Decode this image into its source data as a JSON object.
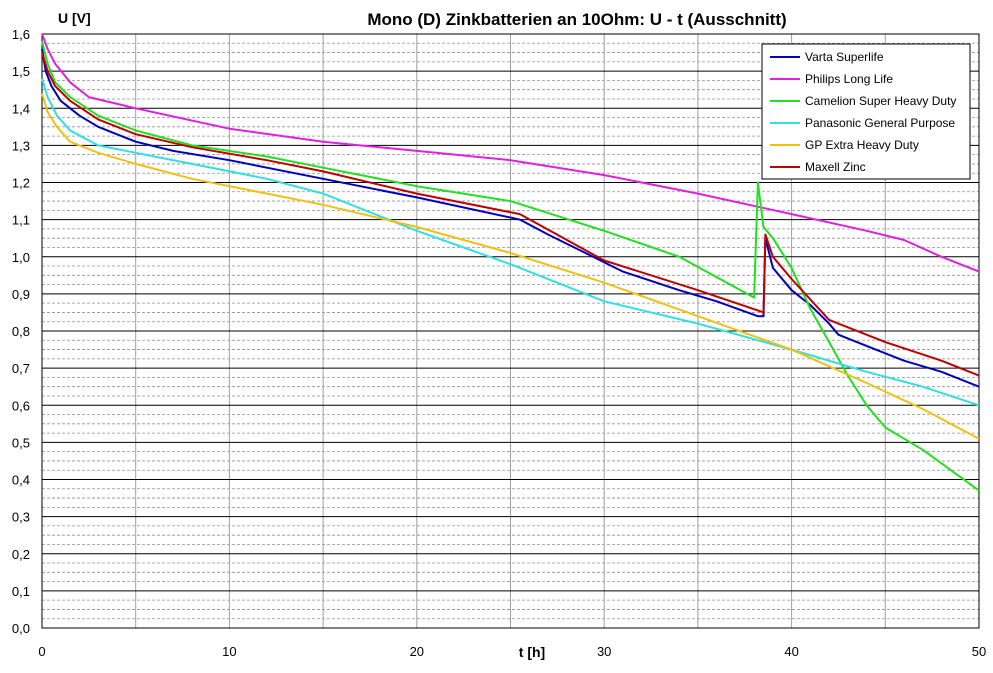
{
  "chart_data": {
    "type": "line",
    "title": "Mono (D) Zinkbatterien an 10Ohm: U - t (Ausschnitt)",
    "xlabel": "t [h]",
    "ylabel": "U [V]",
    "xlim": [
      0,
      50
    ],
    "ylim": [
      0,
      1.6
    ],
    "x_ticks": [
      0,
      10,
      20,
      30,
      40,
      50
    ],
    "x_tick_labels": [
      "0",
      "10",
      "20",
      "30",
      "40",
      "50"
    ],
    "y_ticks": [
      0,
      0.1,
      0.2,
      0.3,
      0.4,
      0.5,
      0.6,
      0.7,
      0.8,
      0.9,
      1.0,
      1.1,
      1.2,
      1.3,
      1.4,
      1.5,
      1.6
    ],
    "y_tick_labels": [
      "0,0",
      "0,1",
      "0,2",
      "0,3",
      "0,4",
      "0,5",
      "0,6",
      "0,7",
      "0,8",
      "0,9",
      "1,0",
      "1,1",
      "1,2",
      "1,3",
      "1,4",
      "1,5",
      "1,6"
    ],
    "grid": true,
    "legend_position": "top-right",
    "series": [
      {
        "name": "Varta Superlife",
        "color": "#0000C0",
        "points": [
          [
            0,
            1.56
          ],
          [
            0.2,
            1.5
          ],
          [
            0.5,
            1.46
          ],
          [
            1,
            1.42
          ],
          [
            2,
            1.38
          ],
          [
            3,
            1.35
          ],
          [
            5,
            1.31
          ],
          [
            7,
            1.285
          ],
          [
            10,
            1.26
          ],
          [
            15,
            1.21
          ],
          [
            20,
            1.16
          ],
          [
            25.5,
            1.1
          ],
          [
            27,
            1.06
          ],
          [
            29,
            1.01
          ],
          [
            31,
            0.96
          ],
          [
            34,
            0.91
          ],
          [
            36,
            0.88
          ],
          [
            38.2,
            0.84
          ],
          [
            38.5,
            0.84
          ],
          [
            38.6,
            1.05
          ],
          [
            39,
            0.97
          ],
          [
            40,
            0.91
          ],
          [
            41,
            0.87
          ],
          [
            42,
            0.82
          ],
          [
            42.5,
            0.79
          ],
          [
            44,
            0.76
          ],
          [
            46,
            0.72
          ],
          [
            48,
            0.69
          ],
          [
            50,
            0.65
          ]
        ]
      },
      {
        "name": "Philips Long Life",
        "color": "#E020E0",
        "points": [
          [
            0,
            1.6
          ],
          [
            0.3,
            1.56
          ],
          [
            0.7,
            1.52
          ],
          [
            1.5,
            1.47
          ],
          [
            2.5,
            1.43
          ],
          [
            5,
            1.4
          ],
          [
            10,
            1.345
          ],
          [
            15,
            1.31
          ],
          [
            20,
            1.285
          ],
          [
            25,
            1.26
          ],
          [
            30,
            1.22
          ],
          [
            35,
            1.17
          ],
          [
            40,
            1.115
          ],
          [
            44,
            1.07
          ],
          [
            46,
            1.045
          ],
          [
            48,
            1.0
          ],
          [
            50,
            0.96
          ]
        ]
      },
      {
        "name": "Camelion Super Heavy Duty",
        "color": "#20E020",
        "points": [
          [
            0,
            1.58
          ],
          [
            0.3,
            1.52
          ],
          [
            0.7,
            1.47
          ],
          [
            1.5,
            1.43
          ],
          [
            3,
            1.38
          ],
          [
            5,
            1.34
          ],
          [
            8,
            1.3
          ],
          [
            12,
            1.27
          ],
          [
            15,
            1.24
          ],
          [
            20,
            1.19
          ],
          [
            25,
            1.15
          ],
          [
            30,
            1.07
          ],
          [
            34,
            1.0
          ],
          [
            38,
            0.89
          ],
          [
            38.2,
            1.2
          ],
          [
            38.5,
            1.08
          ],
          [
            39,
            1.05
          ],
          [
            40,
            0.97
          ],
          [
            41,
            0.86
          ],
          [
            42,
            0.77
          ],
          [
            43,
            0.68
          ],
          [
            44,
            0.6
          ],
          [
            45,
            0.54
          ],
          [
            47,
            0.48
          ],
          [
            50,
            0.37
          ]
        ]
      },
      {
        "name": "Panasonic General Purpose",
        "color": "#30E0E0",
        "points": [
          [
            0,
            1.48
          ],
          [
            0.3,
            1.43
          ],
          [
            0.8,
            1.38
          ],
          [
            1.5,
            1.34
          ],
          [
            3,
            1.3
          ],
          [
            5,
            1.28
          ],
          [
            8,
            1.25
          ],
          [
            12,
            1.21
          ],
          [
            15,
            1.17
          ],
          [
            17,
            1.13
          ],
          [
            20,
            1.07
          ],
          [
            25,
            0.98
          ],
          [
            30,
            0.88
          ],
          [
            35,
            0.82
          ],
          [
            40,
            0.75
          ],
          [
            44,
            0.69
          ],
          [
            47,
            0.65
          ],
          [
            50,
            0.6
          ]
        ]
      },
      {
        "name": "GP Extra Heavy Duty",
        "color": "#F0C010",
        "points": [
          [
            0,
            1.44
          ],
          [
            0.3,
            1.39
          ],
          [
            0.8,
            1.35
          ],
          [
            1.5,
            1.31
          ],
          [
            3,
            1.28
          ],
          [
            5,
            1.25
          ],
          [
            8,
            1.21
          ],
          [
            12,
            1.17
          ],
          [
            15,
            1.14
          ],
          [
            20,
            1.08
          ],
          [
            25,
            1.01
          ],
          [
            30,
            0.93
          ],
          [
            35,
            0.84
          ],
          [
            40,
            0.75
          ],
          [
            44,
            0.66
          ],
          [
            47,
            0.59
          ],
          [
            50,
            0.51
          ]
        ]
      },
      {
        "name": "Maxell Zinc",
        "color": "#C00000",
        "points": [
          [
            0,
            1.55
          ],
          [
            0.3,
            1.5
          ],
          [
            0.7,
            1.46
          ],
          [
            1.5,
            1.42
          ],
          [
            3,
            1.37
          ],
          [
            5,
            1.33
          ],
          [
            8,
            1.295
          ],
          [
            12,
            1.26
          ],
          [
            15,
            1.23
          ],
          [
            20,
            1.17
          ],
          [
            25.5,
            1.115
          ],
          [
            30,
            0.99
          ],
          [
            35,
            0.91
          ],
          [
            38.5,
            0.85
          ],
          [
            38.6,
            1.06
          ],
          [
            39,
            1.0
          ],
          [
            40,
            0.94
          ],
          [
            42,
            0.83
          ],
          [
            45,
            0.77
          ],
          [
            48,
            0.72
          ],
          [
            50,
            0.68
          ]
        ]
      }
    ]
  }
}
